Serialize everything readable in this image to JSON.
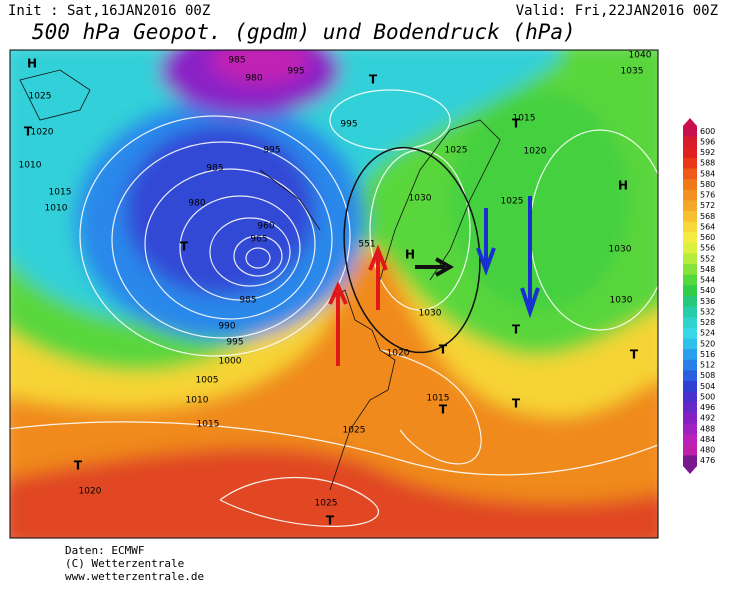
{
  "header": {
    "init": "Init : Sat,16JAN2016 00Z",
    "valid": "Valid: Fri,22JAN2016 00Z",
    "title": "500 hPa Geopot. (gpdm) und Bodendruck (hPa)"
  },
  "map": {
    "labels": [
      "H",
      "1025",
      "T",
      "1020",
      "1010",
      "1015",
      "1010",
      "985",
      "980",
      "T",
      "960",
      "965",
      "985",
      "990",
      "995",
      "1000",
      "1005",
      "1010",
      "1015",
      "1025",
      "T",
      "1020",
      "1025",
      "T",
      "H",
      "1030",
      "1030",
      "1020",
      "T",
      "1015",
      "T",
      "T",
      "1025",
      "1025",
      "1020",
      "1015",
      "T",
      "H",
      "1030",
      "1030",
      "1035",
      "1040",
      "T",
      "T",
      "995",
      "995",
      "980",
      "985",
      "T",
      "995",
      "551"
    ]
  },
  "color_scale": {
    "levels": [
      600,
      596,
      592,
      588,
      584,
      580,
      576,
      572,
      568,
      564,
      560,
      556,
      552,
      548,
      544,
      540,
      536,
      532,
      528,
      524,
      520,
      516,
      512,
      508,
      504,
      500,
      496,
      492,
      488,
      484,
      480,
      476
    ],
    "colors": [
      "#c8104e",
      "#d81a2a",
      "#e02020",
      "#e83818",
      "#ee5a18",
      "#f07818",
      "#f29020",
      "#f4a828",
      "#f6c030",
      "#f8d838",
      "#f4ec40",
      "#dcf040",
      "#b4ec3c",
      "#84e23a",
      "#54d83c",
      "#30cc48",
      "#28c87c",
      "#28cca8",
      "#30d4cc",
      "#38d8e8",
      "#30c0ec",
      "#28a0ec",
      "#2880e8",
      "#2860e0",
      "#3040d4",
      "#4a30cc",
      "#6828c8",
      "#8420c4",
      "#a020c0",
      "#b820b8",
      "#c020a8",
      "#7a1890"
    ]
  },
  "footer": {
    "lines": [
      "Daten: ECMWF",
      "(C) Wetterzentrale",
      "www.wetterzentrale.de"
    ]
  }
}
